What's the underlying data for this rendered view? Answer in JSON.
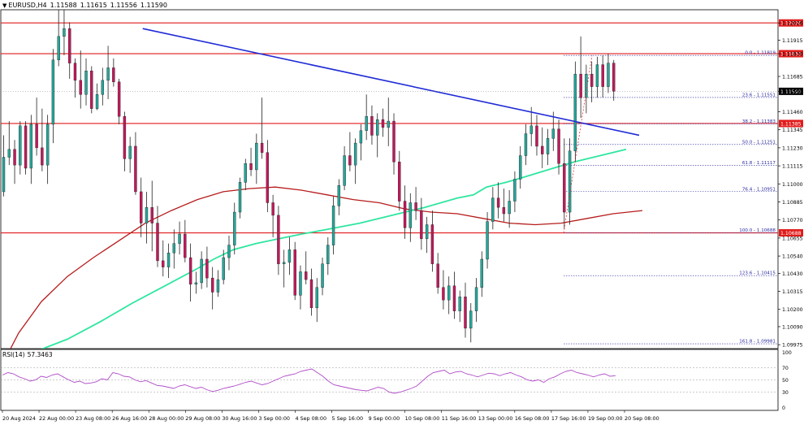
{
  "header": {
    "symbol": "EURUSD,H4",
    "open": "1.11588",
    "high": "1.11615",
    "low": "1.11556",
    "close": "1.11590"
  },
  "rsi": {
    "label": "RSI(14)",
    "value": "57.3463",
    "levels": [
      "100",
      "70",
      "50",
      "30",
      "0"
    ]
  },
  "colors": {
    "bull": "#26a69a",
    "bear": "#c2185b",
    "hline": "#e11b1b",
    "trendline": "#1f2bd6",
    "ma_slow": "#b71c1c",
    "ma_fast": "#2ee6a0",
    "fib": "#2a2aa0",
    "rsi": "#b04cc8",
    "label_bg": "#e11b1b",
    "current_bg": "#000000"
  },
  "chart_data": {
    "type": "candlestick",
    "x_tick_labels": [
      "20 Aug 2024",
      "22 Aug 00:00",
      "23 Aug 08:00",
      "26 Aug 16:00",
      "28 Aug 00:00",
      "29 Aug 08:00",
      "30 Aug 16:00",
      "3 Sep 00:00",
      "4 Sep 08:00",
      "5 Sep 16:00",
      "9 Sep 00:00",
      "10 Sep 08:00",
      "11 Sep 16:00",
      "13 Sep 00:00",
      "16 Sep 08:00",
      "17 Sep 16:00",
      "19 Sep 00:00",
      "20 Sep 08:00"
    ],
    "y_tick_labels": [
      "1.12026",
      "1.11915",
      "1.11830",
      "1.11685",
      "1.11590",
      "1.11460",
      "1.11345",
      "1.11230",
      "1.11115",
      "1.11000",
      "1.10885",
      "1.10770",
      "1.10655",
      "1.10540",
      "1.10430",
      "1.10315",
      "1.10200",
      "1.10090",
      "1.09975"
    ],
    "ylim": [
      1.0995,
      1.1211
    ],
    "horizontal_levels": [
      {
        "label": "1.12026",
        "value": 1.12026
      },
      {
        "label": "1.11830",
        "value": 1.1183
      },
      {
        "label": "1.11385",
        "value": 1.11385
      },
      {
        "label": "1.10688",
        "value": 1.10688
      }
    ],
    "current_price": {
      "label": "1.11590",
      "value": 1.1159
    },
    "fibonacci": [
      {
        "label": "0.0 - 1.11819",
        "value": 1.11819
      },
      {
        "label": "23.6 - 1.11551",
        "value": 1.11551
      },
      {
        "label": "38.2 - 1.11383",
        "value": 1.11383
      },
      {
        "label": "50.0 - 1.11251",
        "value": 1.11251
      },
      {
        "label": "61.8 - 1.11117",
        "value": 1.11117
      },
      {
        "label": "76.4 - 1.10951",
        "value": 1.10951
      },
      {
        "label": "100.0 - 1.10688",
        "value": 1.10688
      },
      {
        "label": "123.6 - 1.10415",
        "value": 1.10415
      },
      {
        "label": "161.8 - 1.09981",
        "value": 1.09981
      }
    ],
    "trendline": {
      "from": {
        "bar": 27,
        "price": 1.1199
      },
      "to": {
        "bar": 196,
        "price": 1.1131
      }
    },
    "ma_slow": [
      [
        0,
        1.0985
      ],
      [
        5,
        1.1005
      ],
      [
        12,
        1.1025
      ],
      [
        20,
        1.1041
      ],
      [
        28,
        1.1053
      ],
      [
        36,
        1.1064
      ],
      [
        44,
        1.1075
      ],
      [
        52,
        1.1083
      ],
      [
        60,
        1.109
      ],
      [
        68,
        1.1095
      ],
      [
        76,
        1.1097
      ],
      [
        84,
        1.1098
      ],
      [
        92,
        1.1096
      ],
      [
        100,
        1.1093
      ],
      [
        108,
        1.109
      ],
      [
        116,
        1.1088
      ],
      [
        124,
        1.1084
      ],
      [
        132,
        1.1082
      ],
      [
        140,
        1.1081
      ],
      [
        148,
        1.1078
      ],
      [
        156,
        1.1075
      ],
      [
        164,
        1.1074
      ],
      [
        172,
        1.1075
      ],
      [
        180,
        1.1078
      ],
      [
        188,
        1.1081
      ],
      [
        197,
        1.1083
      ]
    ],
    "ma_fast": [
      [
        0,
        1.0986
      ],
      [
        10,
        1.0993
      ],
      [
        20,
        1.1001
      ],
      [
        30,
        1.1012
      ],
      [
        40,
        1.1024
      ],
      [
        50,
        1.1035
      ],
      [
        60,
        1.1046
      ],
      [
        65,
        1.1052
      ],
      [
        71,
        1.1058
      ],
      [
        78,
        1.1062
      ],
      [
        85,
        1.1065
      ],
      [
        92,
        1.1068
      ],
      [
        100,
        1.1071
      ],
      [
        110,
        1.1075
      ],
      [
        120,
        1.108
      ],
      [
        130,
        1.1085
      ],
      [
        140,
        1.1091
      ],
      [
        145,
        1.1093
      ],
      [
        149,
        1.1098
      ],
      [
        155,
        1.1101
      ],
      [
        160,
        1.1104
      ],
      [
        168,
        1.1109
      ],
      [
        176,
        1.1114
      ],
      [
        184,
        1.1118
      ],
      [
        192,
        1.1122
      ]
    ],
    "rsi_ylim": [
      0,
      100
    ],
    "rsi_values": [
      58,
      62,
      60,
      55,
      52,
      48,
      50,
      56,
      54,
      58,
      60,
      55,
      50,
      46,
      48,
      44,
      45,
      47,
      52,
      50,
      62,
      60,
      56,
      55,
      50,
      47,
      49,
      45,
      41,
      40,
      38,
      36,
      40,
      42,
      39,
      36,
      38,
      34,
      31,
      33,
      36,
      38,
      40,
      43,
      46,
      48,
      45,
      42,
      44,
      48,
      52,
      56,
      58,
      60,
      64,
      66,
      68,
      62,
      56,
      48,
      42,
      40,
      38,
      36,
      34,
      33,
      32,
      35,
      38,
      36,
      30,
      28,
      30,
      33,
      36,
      40,
      48,
      56,
      62,
      64,
      66,
      60,
      63,
      64,
      60,
      58,
      55,
      58,
      61,
      60,
      57,
      60,
      62,
      58,
      55,
      50,
      48,
      50,
      46,
      52,
      55,
      60,
      64,
      66,
      62,
      60,
      58,
      55,
      58,
      60,
      56,
      57
    ],
    "candles_ohlc": [
      [
        1.1095,
        1.1131,
        1.1092,
        1.1117
      ],
      [
        1.1117,
        1.114,
        1.1112,
        1.1122
      ],
      [
        1.1122,
        1.1128,
        1.11,
        1.1112
      ],
      [
        1.1112,
        1.114,
        1.1106,
        1.1137
      ],
      [
        1.1137,
        1.114,
        1.1106,
        1.111
      ],
      [
        1.111,
        1.1144,
        1.11,
        1.1138
      ],
      [
        1.1138,
        1.1155,
        1.1118,
        1.1123
      ],
      [
        1.1123,
        1.1148,
        1.1108,
        1.1112
      ],
      [
        1.1112,
        1.1144,
        1.11,
        1.1138
      ],
      [
        1.1138,
        1.1186,
        1.1126,
        1.1179
      ],
      [
        1.1179,
        1.1222,
        1.1175,
        1.1194
      ],
      [
        1.1194,
        1.1216,
        1.1182,
        1.1199
      ],
      [
        1.1199,
        1.1203,
        1.1167,
        1.1177
      ],
      [
        1.1177,
        1.118,
        1.1155,
        1.1166
      ],
      [
        1.1166,
        1.1185,
        1.1148,
        1.1157
      ],
      [
        1.1157,
        1.118,
        1.115,
        1.1172
      ],
      [
        1.1172,
        1.1175,
        1.1145,
        1.1148
      ],
      [
        1.1148,
        1.1164,
        1.1147,
        1.1157
      ],
      [
        1.1157,
        1.1174,
        1.115,
        1.1166
      ],
      [
        1.1166,
        1.1188,
        1.1154,
        1.1174
      ],
      [
        1.1174,
        1.118,
        1.1162,
        1.1165
      ],
      [
        1.1165,
        1.1167,
        1.1138,
        1.1143
      ],
      [
        1.1143,
        1.1146,
        1.1108,
        1.1116
      ],
      [
        1.1116,
        1.113,
        1.1107,
        1.1124
      ],
      [
        1.1124,
        1.1133,
        1.1093,
        1.1095
      ],
      [
        1.1095,
        1.1104,
        1.1066,
        1.1075
      ],
      [
        1.1075,
        1.1095,
        1.1062,
        1.1085
      ],
      [
        1.1085,
        1.1102,
        1.1057,
        1.1075
      ],
      [
        1.1075,
        1.1086,
        1.1047,
        1.1051
      ],
      [
        1.1051,
        1.1064,
        1.1041,
        1.1047
      ],
      [
        1.1047,
        1.1062,
        1.104,
        1.1056
      ],
      [
        1.1056,
        1.1071,
        1.1046,
        1.1062
      ],
      [
        1.1062,
        1.1076,
        1.1055,
        1.1068
      ],
      [
        1.1068,
        1.1077,
        1.105,
        1.1053
      ],
      [
        1.1053,
        1.1062,
        1.1025,
        1.1036
      ],
      [
        1.1036,
        1.1044,
        1.103,
        1.1037
      ],
      [
        1.1037,
        1.1057,
        1.1033,
        1.1052
      ],
      [
        1.1052,
        1.106,
        1.1034,
        1.104
      ],
      [
        1.104,
        1.1047,
        1.102,
        1.1031
      ],
      [
        1.1031,
        1.1045,
        1.1028,
        1.1039
      ],
      [
        1.1039,
        1.1058,
        1.1036,
        1.1053
      ],
      [
        1.1053,
        1.1067,
        1.1045,
        1.1061
      ],
      [
        1.1061,
        1.1088,
        1.1055,
        1.1082
      ],
      [
        1.1082,
        1.1104,
        1.1078,
        1.1101
      ],
      [
        1.1101,
        1.1116,
        1.1096,
        1.1113
      ],
      [
        1.1113,
        1.1123,
        1.1105,
        1.1109
      ],
      [
        1.1109,
        1.1132,
        1.11,
        1.1126
      ],
      [
        1.1126,
        1.1155,
        1.1116,
        1.112
      ],
      [
        1.112,
        1.1128,
        1.1082,
        1.1088
      ],
      [
        1.1088,
        1.1093,
        1.1066,
        1.108
      ],
      [
        1.108,
        1.1086,
        1.1042,
        1.1049
      ],
      [
        1.1049,
        1.1058,
        1.1034,
        1.105
      ],
      [
        1.105,
        1.1066,
        1.1042,
        1.1058
      ],
      [
        1.1058,
        1.1063,
        1.1026,
        1.1029
      ],
      [
        1.1029,
        1.1048,
        1.102,
        1.1044
      ],
      [
        1.1044,
        1.1057,
        1.1036,
        1.1039
      ],
      [
        1.1039,
        1.1046,
        1.1016,
        1.1021
      ],
      [
        1.1021,
        1.104,
        1.1012,
        1.1034
      ],
      [
        1.1034,
        1.1053,
        1.1029,
        1.1049
      ],
      [
        1.1049,
        1.1066,
        1.1042,
        1.1061
      ],
      [
        1.1061,
        1.1092,
        1.1055,
        1.1086
      ],
      [
        1.1086,
        1.1103,
        1.108,
        1.1099
      ],
      [
        1.1099,
        1.1124,
        1.1096,
        1.1118
      ],
      [
        1.1118,
        1.1133,
        1.1108,
        1.1112
      ],
      [
        1.1112,
        1.1129,
        1.11,
        1.1126
      ],
      [
        1.1126,
        1.1138,
        1.1115,
        1.1134
      ],
      [
        1.1134,
        1.1157,
        1.1128,
        1.1143
      ],
      [
        1.1143,
        1.115,
        1.1125,
        1.1131
      ],
      [
        1.1131,
        1.1145,
        1.1117,
        1.1141
      ],
      [
        1.1141,
        1.1148,
        1.113,
        1.1136
      ],
      [
        1.1136,
        1.1155,
        1.1124,
        1.114
      ],
      [
        1.114,
        1.1145,
        1.1106,
        1.1114
      ],
      [
        1.1114,
        1.1121,
        1.1083,
        1.1089
      ],
      [
        1.1089,
        1.1099,
        1.1065,
        1.1072
      ],
      [
        1.1072,
        1.1094,
        1.1063,
        1.1088
      ],
      [
        1.1088,
        1.1098,
        1.1077,
        1.1083
      ],
      [
        1.1083,
        1.1091,
        1.1058,
        1.1065
      ],
      [
        1.1065,
        1.1079,
        1.1056,
        1.1074
      ],
      [
        1.1074,
        1.1083,
        1.1044,
        1.1049
      ],
      [
        1.1049,
        1.1056,
        1.103,
        1.1034
      ],
      [
        1.1034,
        1.1045,
        1.102,
        1.1026
      ],
      [
        1.1026,
        1.1041,
        1.1017,
        1.1035
      ],
      [
        1.1035,
        1.1044,
        1.1014,
        1.1019
      ],
      [
        1.1019,
        1.1032,
        1.1012,
        1.1028
      ],
      [
        1.1028,
        1.1037,
        1.1002,
        1.1008
      ],
      [
        1.1008,
        1.1024,
        1.0999,
        1.1019
      ],
      [
        1.1019,
        1.104,
        1.1012,
        1.1034
      ],
      [
        1.1034,
        1.1057,
        1.1028,
        1.1052
      ],
      [
        1.1052,
        1.1082,
        1.1046,
        1.1076
      ],
      [
        1.1076,
        1.1098,
        1.1071,
        1.1091
      ],
      [
        1.1091,
        1.1101,
        1.1078,
        1.1085
      ],
      [
        1.1085,
        1.1097,
        1.1076,
        1.1081
      ],
      [
        1.1081,
        1.1096,
        1.1072,
        1.1089
      ],
      [
        1.1089,
        1.1108,
        1.1082,
        1.1103
      ],
      [
        1.1103,
        1.1124,
        1.1097,
        1.1118
      ],
      [
        1.1118,
        1.1138,
        1.1112,
        1.1132
      ],
      [
        1.1132,
        1.1149,
        1.1124,
        1.1137
      ],
      [
        1.1137,
        1.1144,
        1.1118,
        1.1124
      ],
      [
        1.1124,
        1.1136,
        1.111,
        1.1119
      ],
      [
        1.1119,
        1.1135,
        1.1112,
        1.1129
      ],
      [
        1.1129,
        1.1146,
        1.1121,
        1.1135
      ],
      [
        1.1135,
        1.1141,
        1.1106,
        1.1113
      ],
      [
        1.1113,
        1.1129,
        1.1071,
        1.1082
      ],
      [
        1.1082,
        1.1129,
        1.1074,
        1.1121
      ],
      [
        1.1121,
        1.1178,
        1.1114,
        1.117
      ],
      [
        1.117,
        1.1194,
        1.1142,
        1.1155
      ],
      [
        1.1155,
        1.1176,
        1.1145,
        1.117
      ],
      [
        1.117,
        1.1178,
        1.1152,
        1.1162
      ],
      [
        1.1162,
        1.1181,
        1.1155,
        1.1176
      ],
      [
        1.1176,
        1.1182,
        1.1155,
        1.1162
      ],
      [
        1.1162,
        1.1183,
        1.1158,
        1.1177
      ],
      [
        1.1177,
        1.1179,
        1.1153,
        1.1159
      ]
    ]
  }
}
